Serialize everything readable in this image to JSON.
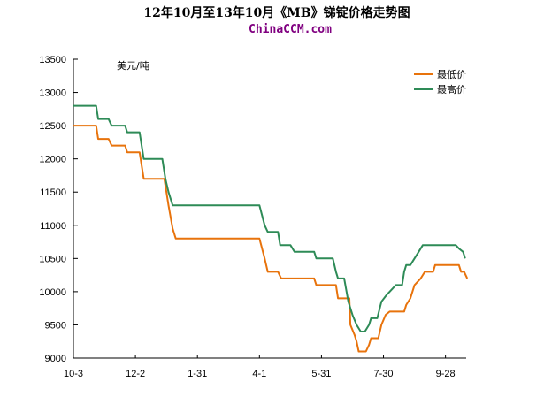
{
  "chart_data": {
    "type": "line",
    "title": "12年10月至13年10月《MB》锑锭价格走势图",
    "subtitle": "ChinaCCM.com",
    "unit_label": "美元/吨",
    "ylim": [
      9000,
      13500
    ],
    "yticks": [
      9000,
      9500,
      10000,
      10500,
      11000,
      11500,
      12000,
      12500,
      13000,
      13500
    ],
    "xlim": [
      0,
      380
    ],
    "xticks": [
      {
        "x": 0,
        "label": "10-3"
      },
      {
        "x": 60,
        "label": "12-2"
      },
      {
        "x": 120,
        "label": "1-31"
      },
      {
        "x": 180,
        "label": "4-1"
      },
      {
        "x": 240,
        "label": "5-31"
      },
      {
        "x": 300,
        "label": "7-30"
      },
      {
        "x": 360,
        "label": "9-28"
      }
    ],
    "legend": "top-right",
    "series": [
      {
        "name": "最低价",
        "color": "#E8730C",
        "points": [
          [
            0,
            12500
          ],
          [
            22,
            12500
          ],
          [
            24,
            12300
          ],
          [
            34,
            12300
          ],
          [
            37,
            12200
          ],
          [
            50,
            12200
          ],
          [
            52,
            12100
          ],
          [
            64,
            12100
          ],
          [
            68,
            11700
          ],
          [
            88,
            11700
          ],
          [
            92,
            11300
          ],
          [
            96,
            10950
          ],
          [
            99,
            10800
          ],
          [
            180,
            10800
          ],
          [
            185,
            10500
          ],
          [
            188,
            10300
          ],
          [
            198,
            10300
          ],
          [
            201,
            10200
          ],
          [
            233,
            10200
          ],
          [
            235,
            10100
          ],
          [
            254,
            10100
          ],
          [
            256,
            9900
          ],
          [
            267,
            9900
          ],
          [
            268,
            9500
          ],
          [
            272,
            9350
          ],
          [
            274,
            9250
          ],
          [
            276,
            9100
          ],
          [
            283,
            9100
          ],
          [
            286,
            9200
          ],
          [
            288,
            9300
          ],
          [
            295,
            9300
          ],
          [
            298,
            9500
          ],
          [
            302,
            9650
          ],
          [
            306,
            9700
          ],
          [
            320,
            9700
          ],
          [
            322,
            9800
          ],
          [
            326,
            9900
          ],
          [
            330,
            10100
          ],
          [
            336,
            10200
          ],
          [
            340,
            10300
          ],
          [
            348,
            10300
          ],
          [
            350,
            10400
          ],
          [
            373,
            10400
          ],
          [
            375,
            10300
          ],
          [
            378,
            10300
          ],
          [
            381,
            10200
          ]
        ]
      },
      {
        "name": "最高价",
        "color": "#2E8B57",
        "points": [
          [
            0,
            12800
          ],
          [
            22,
            12800
          ],
          [
            24,
            12600
          ],
          [
            34,
            12600
          ],
          [
            37,
            12500
          ],
          [
            50,
            12500
          ],
          [
            52,
            12400
          ],
          [
            64,
            12400
          ],
          [
            68,
            12000
          ],
          [
            86,
            12000
          ],
          [
            89,
            11700
          ],
          [
            92,
            11500
          ],
          [
            96,
            11300
          ],
          [
            180,
            11300
          ],
          [
            185,
            11000
          ],
          [
            188,
            10900
          ],
          [
            198,
            10900
          ],
          [
            200,
            10700
          ],
          [
            210,
            10700
          ],
          [
            214,
            10600
          ],
          [
            233,
            10600
          ],
          [
            235,
            10500
          ],
          [
            251,
            10500
          ],
          [
            254,
            10300
          ],
          [
            256,
            10200
          ],
          [
            262,
            10200
          ],
          [
            266,
            9850
          ],
          [
            270,
            9650
          ],
          [
            274,
            9500
          ],
          [
            278,
            9400
          ],
          [
            282,
            9400
          ],
          [
            286,
            9500
          ],
          [
            288,
            9600
          ],
          [
            294,
            9600
          ],
          [
            298,
            9850
          ],
          [
            303,
            9950
          ],
          [
            306,
            10000
          ],
          [
            312,
            10100
          ],
          [
            318,
            10100
          ],
          [
            320,
            10300
          ],
          [
            322,
            10400
          ],
          [
            326,
            10400
          ],
          [
            330,
            10500
          ],
          [
            334,
            10600
          ],
          [
            338,
            10700
          ],
          [
            370,
            10700
          ],
          [
            373,
            10650
          ],
          [
            377,
            10600
          ],
          [
            379,
            10500
          ]
        ]
      }
    ]
  }
}
